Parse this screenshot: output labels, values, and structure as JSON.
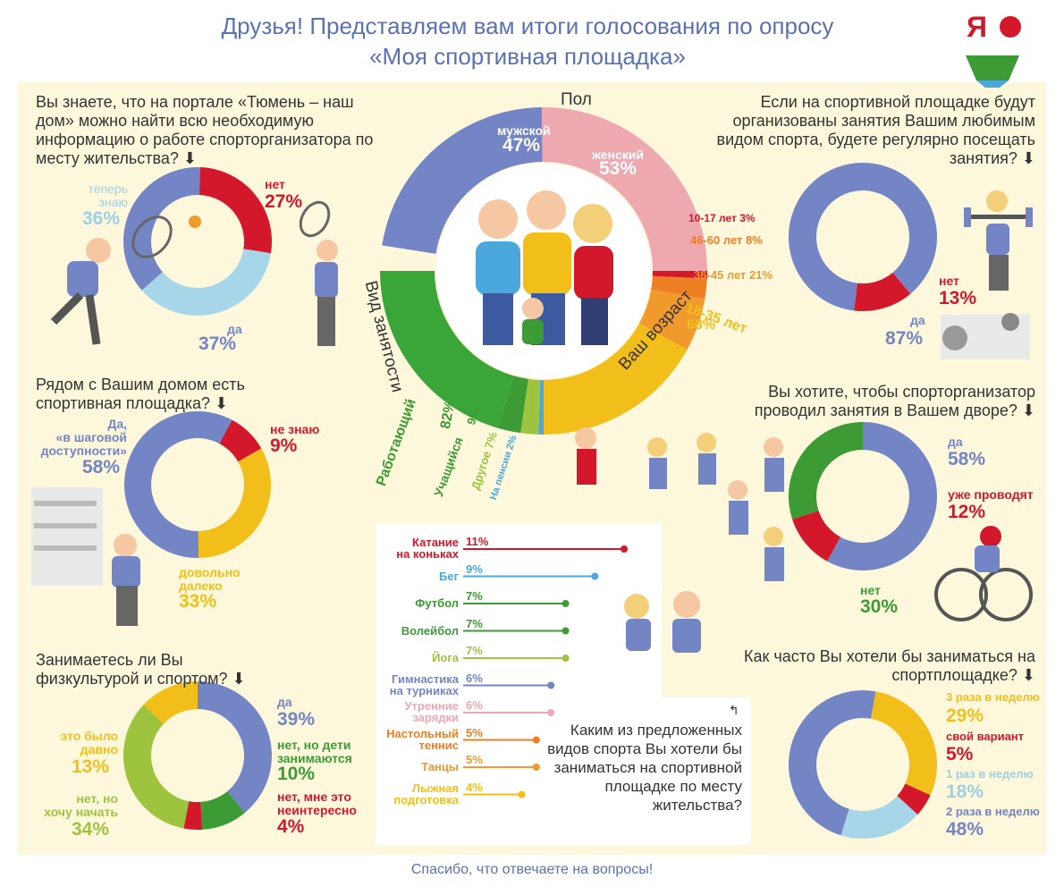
{
  "header": {
    "line1": "Друзья! Представляем вам итоги голосования по опросу",
    "line2": "«Моя спортивная площадка»"
  },
  "logo": {
    "text": "Я"
  },
  "footer": {
    "text": "Спасибо, что отвечаете на вопросы!"
  },
  "colors": {
    "blue": "#7385c4",
    "red": "#d3182c",
    "yellow": "#f2bf1a",
    "green": "#3c9b35",
    "lightgreen": "#9ec33f",
    "lightblue": "#a7d6e8",
    "pink": "#eea8b0",
    "orange": "#ee7f22",
    "darkorange": "#f09a2d",
    "panel": "#fdf8dc"
  },
  "q1": {
    "question": "Вы знаете, что на портале «Тюмень – наш дом» можно найти всю необходимую информацию о работе спорторганизатора по месту жительства? ⬇",
    "no_label": "нет",
    "no_pct": "27%",
    "now_label1": "теперь",
    "now_label2": "знаю",
    "now_pct": "36%",
    "yes_label": "да",
    "yes_pct": "37%"
  },
  "q2": {
    "question": "Рядом с Вашим домом есть спортивная площадка? ⬇",
    "yes_label1": "Да,",
    "yes_label2": "«в шаговой",
    "yes_label3": "доступности»",
    "yes_pct": "58%",
    "dk_label": "не знаю",
    "dk_pct": "9%",
    "far_label1": "довольно",
    "far_label2": "далеко",
    "far_pct": "33%"
  },
  "q3": {
    "question": "Занимаетесь ли Вы физкультурой и спортом? ⬇",
    "yes_label": "да",
    "yes_pct": "39%",
    "kids_label1": "нет, но дети",
    "kids_label2": "занимаются",
    "kids_pct": "10%",
    "ni_label1": "нет, мне это",
    "ni_label2": "неинтересно",
    "ni_pct": "4%",
    "long_label1": "это было",
    "long_label2": "давно",
    "long_pct": "13%",
    "want_label1": "нет, но",
    "want_label2": "хочу начать",
    "want_pct": "34%"
  },
  "q4": {
    "question": "Если на спортивной площадке будут организованы занятия Вашим любимым видом спорта, будете регулярно посещать занятия? ⬇",
    "no_label": "нет",
    "no_pct": "13%",
    "yes_label": "да",
    "yes_pct": "87%"
  },
  "q5": {
    "question": "Вы хотите, чтобы спорторганизатор проводил занятия в Вашем дворе? ⬇",
    "yes_label": "да",
    "yes_pct": "58%",
    "already_label": "уже проводят",
    "already_pct": "12%",
    "no_label": "нет",
    "no_pct": "30%"
  },
  "q6": {
    "question": "Как часто Вы хотели бы заниматься на спортплощадке? ⬇",
    "a_label": "3 раза в неделю",
    "a_pct": "29%",
    "b_label": "свой вариант",
    "b_pct": "5%",
    "c_label": "1 раз в неделю",
    "c_pct": "18%",
    "d_label": "2 раза в неделю",
    "d_pct": "48%"
  },
  "center": {
    "sex_title": "Пол",
    "age_title": "Ваш возраст",
    "occ_title": "Вид занятости",
    "male_label": "мужской",
    "male_pct": "47%",
    "female_label": "женский",
    "female_pct": "53%",
    "age1": "10-17 лет 3%",
    "age2": "46-60 лет 8%",
    "age3": "36-45 лет 21%",
    "age4_label": "18-35 лет",
    "age4_pct": "68%",
    "occ1": "Работающий",
    "occ1_pct": "82%",
    "occ2": "Учащийся",
    "occ2_pct": "9%",
    "occ3": "Другое 7%",
    "occ4": "На пенсии 2%"
  },
  "sports": {
    "question": "Каким из предложенных видов спорта Вы хотели бы заниматься на спортивной площадке по месту жительства?",
    "items": [
      {
        "name1": "Катание",
        "name2": "на коньках",
        "pct": "11%",
        "value": 11,
        "color": "#d3182c"
      },
      {
        "name1": "Бег",
        "name2": "",
        "pct": "9%",
        "value": 9,
        "color": "#4aa8dc"
      },
      {
        "name1": "Футбол",
        "name2": "",
        "pct": "7%",
        "value": 7,
        "color": "#3c9b35"
      },
      {
        "name1": "Волейбол",
        "name2": "",
        "pct": "7%",
        "value": 7,
        "color": "#3c9b35"
      },
      {
        "name1": "Йога",
        "name2": "",
        "pct": "7%",
        "value": 7,
        "color": "#9ec33f"
      },
      {
        "name1": "Гимнастика",
        "name2": "на турниках",
        "pct": "6%",
        "value": 6,
        "color": "#7385c4"
      },
      {
        "name1": "Утренние",
        "name2": "зарядки",
        "pct": "6%",
        "value": 6,
        "color": "#eea8b0"
      },
      {
        "name1": "Настольный",
        "name2": "теннис",
        "pct": "5%",
        "value": 5,
        "color": "#ee7f22"
      },
      {
        "name1": "Танцы",
        "name2": "",
        "pct": "5%",
        "value": 5,
        "color": "#f09a2d"
      },
      {
        "name1": "Лыжная",
        "name2": "подготовка",
        "pct": "4%",
        "value": 4,
        "color": "#f2bf1a"
      }
    ]
  },
  "chart_data": [
    {
      "type": "pie",
      "title": "Вы знаете, что на портале «Тюмень – наш дом» можно найти всю необходимую информацию о работе спорторганизатора по месту жительства?",
      "categories": [
        "нет",
        "теперь знаю",
        "да"
      ],
      "values": [
        27,
        36,
        37
      ]
    },
    {
      "type": "pie",
      "title": "Рядом с Вашим домом есть спортивная площадка?",
      "categories": [
        "Да, «в шаговой доступности»",
        "не знаю",
        "довольно далеко"
      ],
      "values": [
        58,
        9,
        33
      ]
    },
    {
      "type": "pie",
      "title": "Занимаетесь ли Вы физкультурой и спортом?",
      "categories": [
        "да",
        "нет, но дети занимаются",
        "нет, мне это неинтересно",
        "нет, но хочу начать",
        "это было давно"
      ],
      "values": [
        39,
        10,
        4,
        34,
        13
      ]
    },
    {
      "type": "pie",
      "title": "Если на спортивной площадке будут организованы занятия Вашим любимым видом спорта, будете регулярно посещать занятия?",
      "categories": [
        "нет",
        "да"
      ],
      "values": [
        13,
        87
      ]
    },
    {
      "type": "pie",
      "title": "Вы хотите, чтобы спорторганизатор проводил занятия в Вашем дворе?",
      "categories": [
        "да",
        "уже проводят",
        "нет"
      ],
      "values": [
        58,
        12,
        30
      ]
    },
    {
      "type": "pie",
      "title": "Как часто Вы хотели бы заниматься на спортплощадке?",
      "categories": [
        "3 раза в неделю",
        "свой вариант",
        "1 раз в неделю",
        "2 раза в неделю"
      ],
      "values": [
        29,
        5,
        18,
        48
      ]
    },
    {
      "type": "pie",
      "title": "Пол",
      "categories": [
        "мужской",
        "женский"
      ],
      "values": [
        47,
        53
      ]
    },
    {
      "type": "pie",
      "title": "Ваш возраст",
      "categories": [
        "10-17 лет",
        "46-60 лет",
        "36-45 лет",
        "18-35 лет"
      ],
      "values": [
        3,
        8,
        21,
        68
      ]
    },
    {
      "type": "pie",
      "title": "Вид занятости",
      "categories": [
        "Работающий",
        "Учащийся",
        "Другое",
        "На пенсии"
      ],
      "values": [
        82,
        9,
        7,
        2
      ]
    },
    {
      "type": "bar",
      "title": "Каким из предложенных видов спорта Вы хотели бы заниматься на спортивной площадке по месту жительства?",
      "categories": [
        "Катание на коньках",
        "Бег",
        "Футбол",
        "Волейбол",
        "Йога",
        "Гимнастика на турниках",
        "Утренние зарядки",
        "Настольный теннис",
        "Танцы",
        "Лыжная подготовка"
      ],
      "values": [
        11,
        9,
        7,
        7,
        7,
        6,
        6,
        5,
        5,
        4
      ]
    }
  ]
}
